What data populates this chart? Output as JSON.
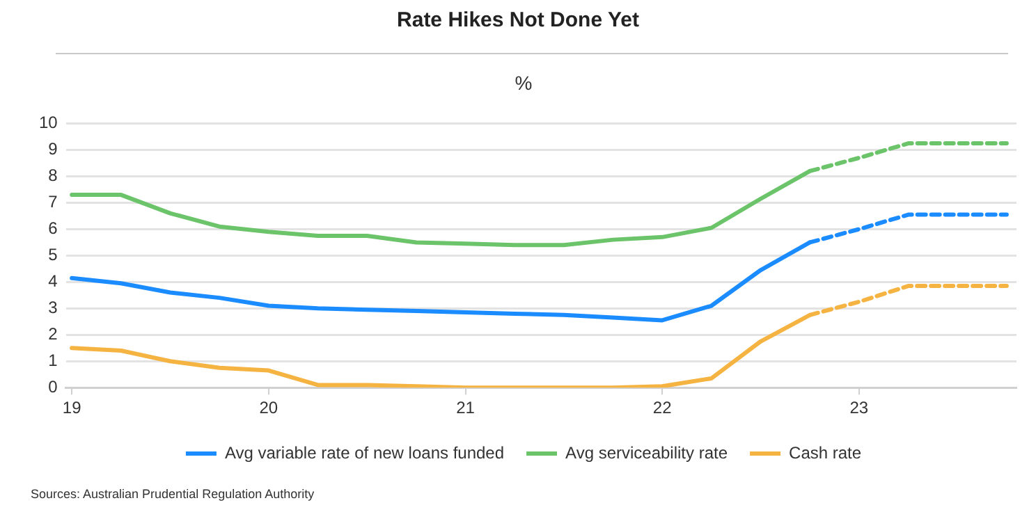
{
  "chart_data": {
    "type": "line",
    "title": "Rate Hikes Not Done Yet",
    "ylabel": "%",
    "xlim": [
      18.97,
      23.8
    ],
    "xticks": [
      19,
      20,
      21,
      22,
      23
    ],
    "ylim": [
      0,
      10
    ],
    "yticks": [
      0,
      1,
      2,
      3,
      4,
      5,
      6,
      7,
      8,
      9,
      10
    ],
    "grid": "y",
    "legend": "bottom",
    "line_style": "solid",
    "marker": "none",
    "series": [
      {
        "name": "Avg variable rate of new loans funded",
        "color": "#1a8cff",
        "x": [
          19,
          19.25,
          19.5,
          19.75,
          20,
          20.25,
          20.5,
          20.75,
          21,
          21.25,
          21.5,
          21.75,
          22,
          22.25,
          22.5,
          22.75
        ],
        "values": [
          4.15,
          3.95,
          3.6,
          3.4,
          3.1,
          3.0,
          2.95,
          2.9,
          2.85,
          2.8,
          2.75,
          2.65,
          2.55,
          3.1,
          4.45,
          5.5
        ]
      },
      {
        "name": "Avg serviceability rate",
        "color": "#6cc46a",
        "x": [
          19,
          19.25,
          19.5,
          19.75,
          20,
          20.25,
          20.5,
          20.75,
          21,
          21.25,
          21.5,
          21.75,
          22,
          22.25,
          22.5,
          22.75
        ],
        "values": [
          7.3,
          7.3,
          6.6,
          6.1,
          5.9,
          5.75,
          5.75,
          5.5,
          5.45,
          5.4,
          5.4,
          5.6,
          5.7,
          6.05,
          7.15,
          8.2
        ]
      },
      {
        "name": "Cash rate",
        "color": "#f5b342",
        "x": [
          19,
          19.25,
          19.5,
          19.75,
          20,
          20.25,
          20.5,
          20.75,
          21,
          21.25,
          21.5,
          21.75,
          22,
          22.25,
          22.5,
          22.75
        ],
        "values": [
          1.5,
          1.4,
          1.0,
          0.75,
          0.65,
          0.1,
          0.1,
          0.05,
          0,
          0,
          0,
          0,
          0.05,
          0.35,
          1.75,
          2.75
        ]
      },
      {
        "color": "#1a8cff",
        "line_style": "dashed",
        "x": [
          22.75,
          23,
          23.25,
          23.5,
          23.75
        ],
        "values": [
          5.5,
          6.0,
          6.55,
          6.55,
          6.55
        ]
      },
      {
        "color": "#6cc46a",
        "line_style": "dashed",
        "x": [
          22.75,
          23,
          23.25,
          23.5,
          23.75
        ],
        "values": [
          8.2,
          8.7,
          9.25,
          9.25,
          9.25
        ]
      },
      {
        "color": "#f5b342",
        "line_style": "dashed",
        "x": [
          22.75,
          23,
          23.25,
          23.5,
          23.75
        ],
        "values": [
          2.75,
          3.25,
          3.85,
          3.85,
          3.85
        ]
      }
    ],
    "annotations": [
      "Sources: Australian Prudential Regulation Authority"
    ]
  }
}
